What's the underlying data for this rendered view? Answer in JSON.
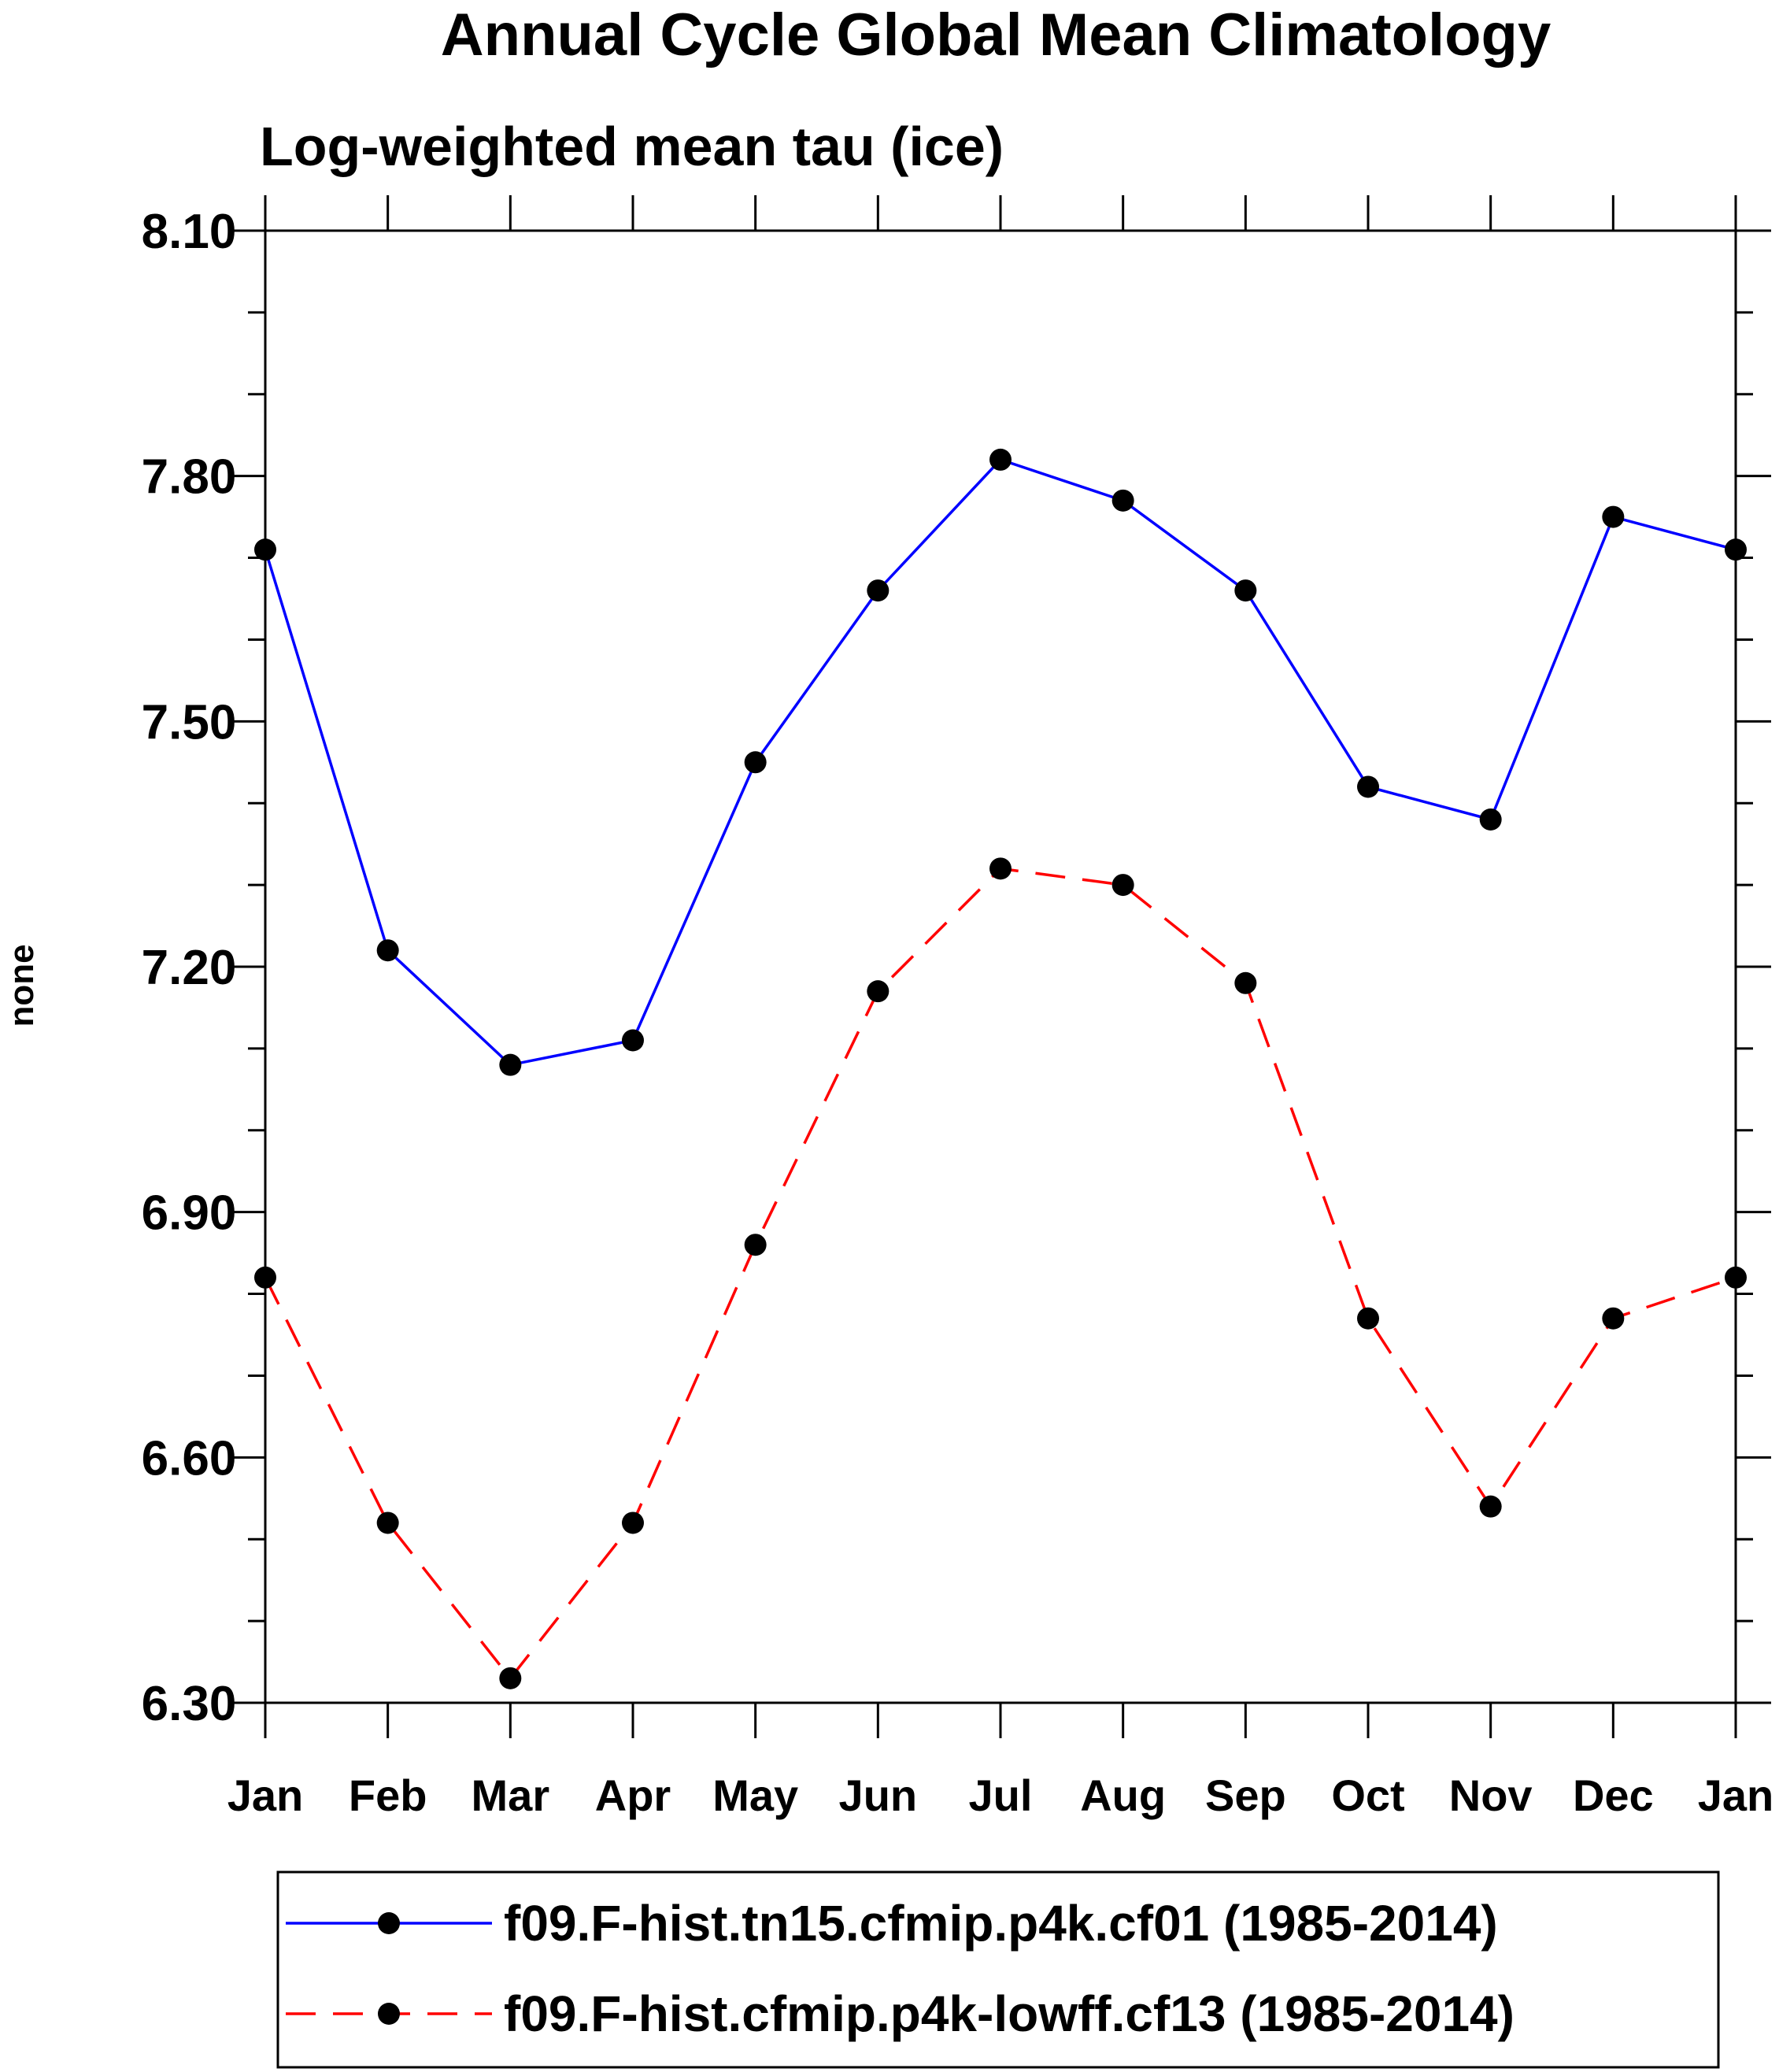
{
  "chart_data": {
    "type": "line",
    "title": "Annual Cycle Global Mean Climatology",
    "subtitle": "Log-weighted mean tau (ice)",
    "xlabel": "",
    "ylabel": "none",
    "categories": [
      "Jan",
      "Feb",
      "Mar",
      "Apr",
      "May",
      "Jun",
      "Jul",
      "Aug",
      "Sep",
      "Oct",
      "Nov",
      "Dec",
      "Jan"
    ],
    "ylim": [
      6.3,
      8.1
    ],
    "yticks": [
      "8.10",
      "7.80",
      "7.50",
      "7.20",
      "6.90",
      "6.60",
      "6.30"
    ],
    "series": [
      {
        "name": "f09.F-hist.tn15.cfmip.p4k.cf01 (1985-2014)",
        "color": "#0000ff",
        "dash": "solid",
        "values": [
          7.71,
          7.22,
          7.08,
          7.11,
          7.45,
          7.66,
          7.82,
          7.77,
          7.66,
          7.42,
          7.38,
          7.75,
          7.71
        ]
      },
      {
        "name": "f09.F-hist.cfmip.p4k-lowff.cf13 (1985-2014)",
        "color": "#ff0000",
        "dash": "dashed",
        "values": [
          6.82,
          6.52,
          6.33,
          6.52,
          6.86,
          7.17,
          7.32,
          7.3,
          7.18,
          6.77,
          6.54,
          6.77,
          6.82
        ]
      }
    ],
    "grid": false,
    "legend_position": "bottom"
  }
}
